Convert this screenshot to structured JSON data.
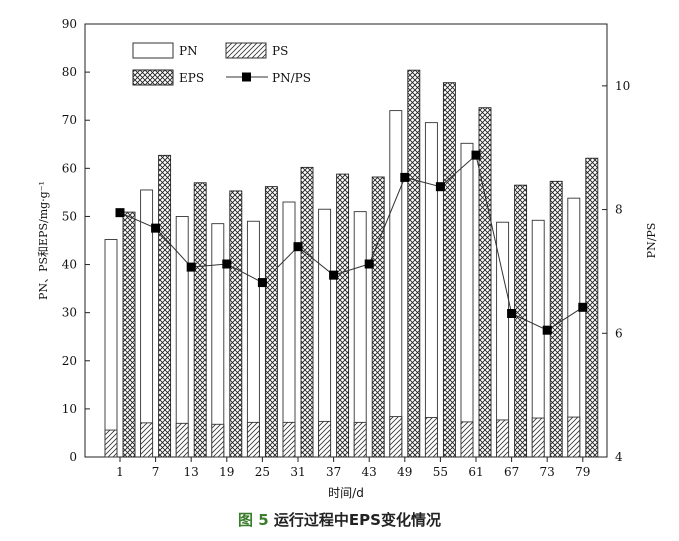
{
  "caption": {
    "figure_label": "图 5",
    "text": "运行过程中EPS变化情况"
  },
  "chart_data": {
    "type": "bar",
    "xlabel": "时间/d",
    "ylabel_left": "PN、PS和EPS/mg·g⁻¹",
    "ylabel_right": "PN/PS",
    "ylim_left": [
      0,
      90
    ],
    "yticks_left": [
      0,
      10,
      20,
      30,
      40,
      50,
      60,
      70,
      80,
      90
    ],
    "ylim_right": [
      4,
      11
    ],
    "yticks_right": [
      4,
      6,
      8,
      10
    ],
    "categories": [
      "1",
      "7",
      "13",
      "19",
      "25",
      "31",
      "37",
      "43",
      "49",
      "55",
      "61",
      "67",
      "73",
      "79"
    ],
    "series": [
      {
        "name": "PN",
        "style": "white",
        "values": [
          45.2,
          55.5,
          50.0,
          48.5,
          49.0,
          53.0,
          51.5,
          51.0,
          72.0,
          69.5,
          65.2,
          48.8,
          49.2,
          53.8
        ]
      },
      {
        "name": "PS",
        "style": "hatch",
        "values": [
          5.6,
          7.1,
          7.0,
          6.8,
          7.2,
          7.2,
          7.4,
          7.2,
          8.4,
          8.2,
          7.3,
          7.7,
          8.1,
          8.3
        ]
      },
      {
        "name": "EPS",
        "style": "crosshatch",
        "values": [
          50.9,
          62.7,
          57.0,
          55.3,
          56.2,
          60.2,
          58.8,
          58.2,
          80.4,
          77.8,
          72.6,
          56.5,
          57.3,
          62.1
        ]
      },
      {
        "name": "PN/PS",
        "style": "line-square",
        "axis": "right",
        "values": [
          7.95,
          7.7,
          7.07,
          7.12,
          6.82,
          7.4,
          6.94,
          7.12,
          8.52,
          8.37,
          8.88,
          6.32,
          6.05,
          6.42
        ]
      }
    ],
    "legend_position": "top-left",
    "colors": {
      "axis": "#222222",
      "bar_fill": "#ffffff",
      "line": "#333333",
      "caption_label": "#3a7d2c"
    }
  }
}
